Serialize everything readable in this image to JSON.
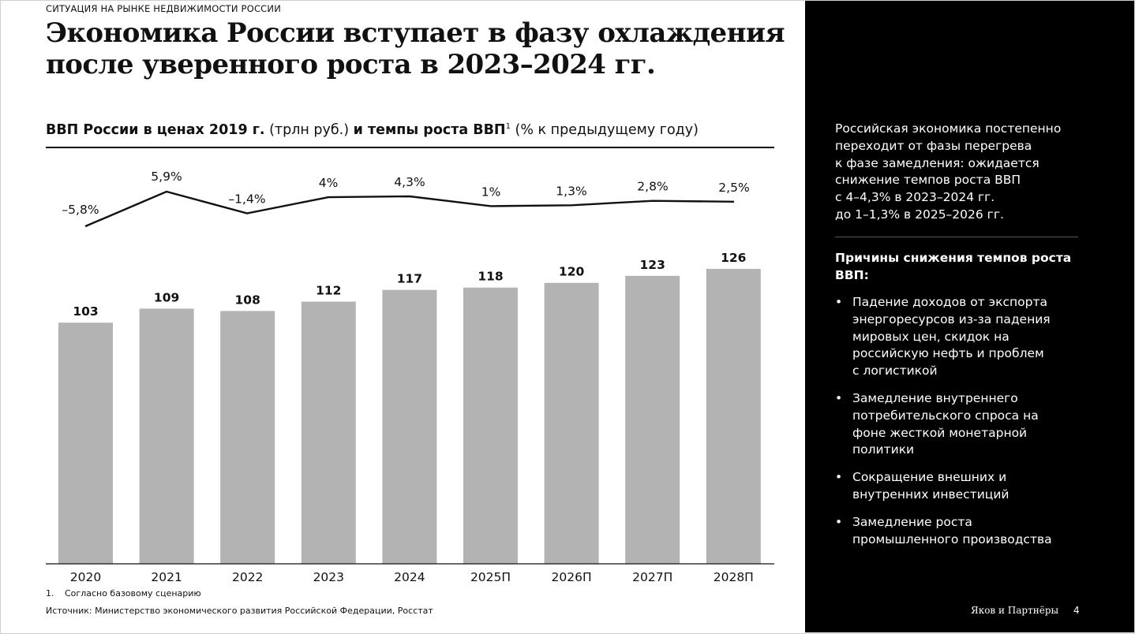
{
  "header": {
    "section_label": "СИТУАЦИЯ НА РЫНКЕ НЕДВИЖИМОСТИ РОССИИ",
    "title": "Экономика России вступает в фазу охлаждения после уверенного роста в 2023–2024 гг."
  },
  "chart_heading": {
    "part1_bold": "ВВП России в ценах 2019 г.",
    "part2": " (трлн руб.) ",
    "part3_bold": "и темпы роста ВВП",
    "footnote_marker": "1",
    "part4": " (% к предыдущему году)"
  },
  "chart_data": {
    "type": "bar",
    "categories": [
      "2020",
      "2021",
      "2022",
      "2023",
      "2024",
      "2025П",
      "2026П",
      "2027П",
      "2028П"
    ],
    "values": [
      103,
      109,
      108,
      112,
      117,
      118,
      120,
      123,
      126
    ],
    "value_labels": [
      "103",
      "109",
      "108",
      "112",
      "117",
      "118",
      "120",
      "123",
      "126"
    ],
    "line_series": {
      "values": [
        -5.8,
        5.9,
        -1.4,
        4.0,
        4.3,
        1.0,
        1.3,
        2.8,
        2.5
      ],
      "labels": [
        "–5,8%",
        "5,9%",
        "–1,4%",
        "4%",
        "4,3%",
        "1%",
        "1,3%",
        "2,8%",
        "2,5%"
      ]
    },
    "bar_color": "#b3b3b3",
    "line_color": "#111111"
  },
  "footnote": {
    "number": "1.",
    "text": "Согласно базовому сценарию"
  },
  "source": "Источник: Министерство экономического развития Российской Федерации, Росстат",
  "sidebar": {
    "intro_lines": [
      "Российская экономика постепенно",
      "переходит от фазы перегрева",
      "к фазе замедления: ожидается",
      "снижение темпов роста ВВП",
      "с 4–4,3% в 2023–2024 гг.",
      "до 1–1,3% в 2025–2026 гг."
    ],
    "reasons_title_lines": [
      "Причины снижения темпов роста",
      "ВВП:"
    ],
    "bullet_symbol": "•",
    "reasons": [
      [
        "Падение доходов от экспорта",
        "энергоресурсов из-за падения",
        "мировых цен, скидок на",
        "российскую нефть и проблем",
        "с логистикой"
      ],
      [
        "Замедление внутреннего",
        "потребительского спроса на",
        "фоне жесткой монетарной",
        "политики"
      ],
      [
        "Сокращение внешних и",
        "внутренних инвестиций"
      ],
      [
        "Замедление роста",
        "промышленного производства"
      ]
    ],
    "logo": "Яков и Партнёры",
    "page_number": "4"
  }
}
